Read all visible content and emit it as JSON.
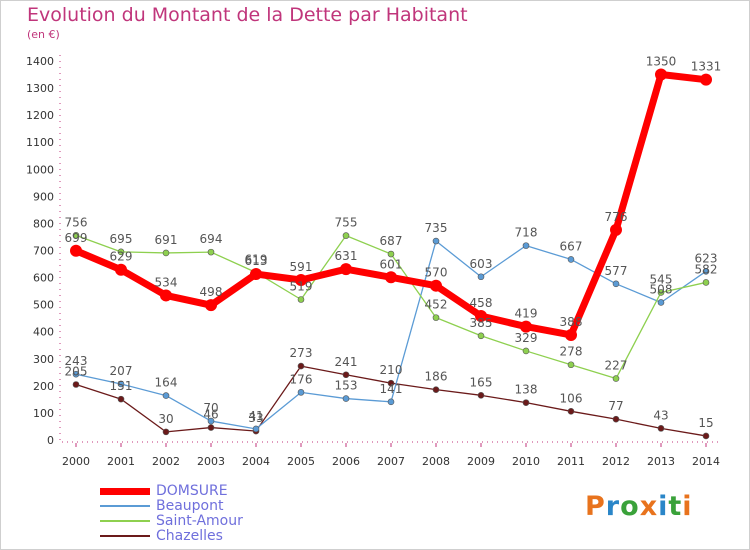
{
  "title": "Evolution du Montant de la Dette par Habitant",
  "unit_label": "(en €)",
  "logo": {
    "text": "Proxiti",
    "colors": [
      "#e8731d",
      "#2a86c8",
      "#3aa23a",
      "#e8731d",
      "#2a86c8",
      "#3aa23a",
      "#e8731d"
    ]
  },
  "chart_data": {
    "type": "line",
    "x": [
      "2000",
      "2001",
      "2002",
      "2003",
      "2004",
      "2005",
      "2006",
      "2007",
      "2008",
      "2009",
      "2010",
      "2011",
      "2012",
      "2013",
      "2014"
    ],
    "ylim": [
      0,
      1400
    ],
    "yticks": [
      0,
      100,
      200,
      300,
      400,
      500,
      600,
      700,
      800,
      900,
      1000,
      1100,
      1200,
      1300,
      1400
    ],
    "grid": false,
    "legend_position": "bottom-left",
    "series": [
      {
        "name": "DOMSURE",
        "color": "#ff0000",
        "values": [
          699,
          629,
          534,
          498,
          613,
          591,
          631,
          601,
          570,
          458,
          419,
          388,
          776,
          1350,
          1331
        ]
      },
      {
        "name": "Beaupont",
        "color": "#5b9bd5",
        "values": [
          243,
          207,
          164,
          70,
          41,
          176,
          153,
          141,
          735,
          603,
          718,
          667,
          577,
          508,
          623
        ]
      },
      {
        "name": "Saint-Amour",
        "color": "#8ed04f",
        "values": [
          756,
          695,
          691,
          694,
          619,
          519,
          755,
          687,
          452,
          385,
          329,
          278,
          227,
          545,
          582
        ]
      },
      {
        "name": "Chazelles",
        "color": "#6b1a1a",
        "values": [
          205,
          151,
          30,
          46,
          33,
          273,
          241,
          210,
          186,
          165,
          138,
          106,
          77,
          43,
          15
        ]
      }
    ]
  }
}
